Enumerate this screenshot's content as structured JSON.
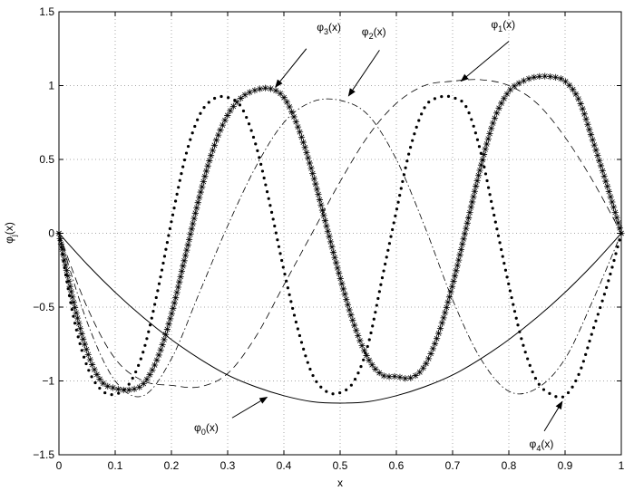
{
  "chart_data": {
    "type": "line",
    "title": "",
    "xlabel": "x",
    "ylabel": {
      "main": "φ",
      "sub": "j",
      "suffix": "(x)"
    },
    "xlim": [
      0,
      1
    ],
    "ylim": [
      -1.5,
      1.5
    ],
    "grid": true,
    "x_ticks": [
      "0",
      "0.1",
      "0.2",
      "0.3",
      "0.4",
      "0.5",
      "0.6",
      "0.7",
      "0.8",
      "0.9",
      "1"
    ],
    "y_ticks": [
      "−1.5",
      "−1",
      "−0.5",
      "0",
      "0.5",
      "1",
      "1.5"
    ],
    "x_tick_values": [
      0,
      0.1,
      0.2,
      0.3,
      0.4,
      0.5,
      0.6,
      0.7,
      0.8,
      0.9,
      1.0
    ],
    "y_tick_values": [
      -1.5,
      -1.0,
      -0.5,
      0,
      0.5,
      1.0,
      1.5
    ],
    "series": [
      {
        "id": "phi0",
        "style": "solid",
        "x": [
          0,
          0.05,
          0.1,
          0.15,
          0.2,
          0.25,
          0.3,
          0.35,
          0.4,
          0.45,
          0.5,
          0.55,
          0.6,
          0.65,
          0.7,
          0.75,
          0.8,
          0.85,
          0.9,
          0.95,
          1.0
        ],
        "y": [
          0,
          -0.21,
          -0.4,
          -0.57,
          -0.72,
          -0.85,
          -0.96,
          -1.04,
          -1.1,
          -1.14,
          -1.15,
          -1.14,
          -1.1,
          -1.04,
          -0.96,
          -0.85,
          -0.72,
          -0.57,
          -0.4,
          -0.21,
          0
        ]
      },
      {
        "id": "phi1",
        "style": "dashed",
        "x": [
          0,
          0.05,
          0.1,
          0.15,
          0.2,
          0.25,
          0.3,
          0.35,
          0.4,
          0.45,
          0.5,
          0.55,
          0.6,
          0.65,
          0.7,
          0.75,
          0.8,
          0.85,
          0.9,
          0.95,
          1.0
        ],
        "y": [
          0,
          -0.5,
          -0.85,
          -1.0,
          -1.03,
          -1.04,
          -0.95,
          -0.7,
          -0.35,
          0.0,
          0.35,
          0.66,
          0.88,
          1.0,
          1.03,
          1.04,
          1.0,
          0.88,
          0.65,
          0.35,
          0
        ]
      },
      {
        "id": "phi2",
        "style": "dashdot",
        "x": [
          0,
          0.05,
          0.1,
          0.15,
          0.2,
          0.25,
          0.3,
          0.35,
          0.4,
          0.45,
          0.5,
          0.55,
          0.6,
          0.65,
          0.7,
          0.75,
          0.8,
          0.85,
          0.9,
          0.95,
          1.0
        ],
        "y": [
          0,
          -0.6,
          -1.0,
          -1.1,
          -0.85,
          -0.4,
          0.05,
          0.45,
          0.75,
          0.89,
          0.9,
          0.8,
          0.5,
          0.05,
          -0.45,
          -0.85,
          -1.07,
          -1.05,
          -0.85,
          -0.45,
          0
        ]
      },
      {
        "id": "phi3",
        "style": "stars",
        "x": [
          0,
          0.025,
          0.05,
          0.075,
          0.1,
          0.125,
          0.15,
          0.175,
          0.2,
          0.225,
          0.25,
          0.275,
          0.3,
          0.325,
          0.35,
          0.375,
          0.4,
          0.425,
          0.45,
          0.475,
          0.5,
          0.525,
          0.55,
          0.575,
          0.6,
          0.625,
          0.65,
          0.675,
          0.7,
          0.725,
          0.75,
          0.775,
          0.8,
          0.825,
          0.85,
          0.875,
          0.9,
          0.925,
          0.95,
          0.975,
          1.0
        ],
        "y": [
          0,
          -0.45,
          -0.8,
          -1.0,
          -1.05,
          -1.06,
          -1.02,
          -0.85,
          -0.55,
          -0.15,
          0.25,
          0.58,
          0.8,
          0.92,
          0.97,
          0.98,
          0.92,
          0.72,
          0.42,
          0.06,
          -0.3,
          -0.62,
          -0.85,
          -0.96,
          -0.97,
          -0.98,
          -0.9,
          -0.68,
          -0.35,
          0.05,
          0.45,
          0.78,
          0.96,
          1.03,
          1.06,
          1.06,
          1.03,
          0.9,
          0.62,
          0.32,
          0
        ]
      },
      {
        "id": "phi4",
        "style": "dots",
        "x": [
          0,
          0.025,
          0.05,
          0.075,
          0.1,
          0.125,
          0.15,
          0.175,
          0.2,
          0.225,
          0.25,
          0.275,
          0.3,
          0.325,
          0.35,
          0.375,
          0.4,
          0.425,
          0.45,
          0.475,
          0.5,
          0.525,
          0.55,
          0.575,
          0.6,
          0.625,
          0.65,
          0.675,
          0.7,
          0.725,
          0.75,
          0.775,
          0.8,
          0.825,
          0.85,
          0.875,
          0.9,
          0.925,
          0.95,
          0.975,
          1.0
        ],
        "y": [
          0,
          -0.55,
          -0.9,
          -1.06,
          -1.09,
          -1.02,
          -0.8,
          -0.4,
          0.08,
          0.52,
          0.8,
          0.91,
          0.92,
          0.85,
          0.6,
          0.2,
          -0.25,
          -0.65,
          -0.95,
          -1.07,
          -1.08,
          -1.0,
          -0.75,
          -0.3,
          0.15,
          0.58,
          0.85,
          0.92,
          0.92,
          0.85,
          0.55,
          0.1,
          -0.35,
          -0.75,
          -1.0,
          -1.09,
          -1.1,
          -0.95,
          -0.65,
          -0.35,
          0
        ]
      }
    ],
    "annotations": [
      {
        "id": "phi0-label",
        "main": "φ",
        "sub": "0",
        "suffix": "(x)",
        "text_x": 0.262,
        "text_y": -1.34,
        "arrow_from": [
          0.308,
          -1.25
        ],
        "arrow_to": [
          0.37,
          -1.11
        ]
      },
      {
        "id": "phi1-label",
        "main": "φ",
        "sub": "1",
        "suffix": "(x)",
        "text_x": 0.79,
        "text_y": 1.39,
        "arrow_from": [
          0.8,
          1.3
        ],
        "arrow_to": [
          0.715,
          1.03
        ]
      },
      {
        "id": "phi2-label",
        "main": "φ",
        "sub": "2",
        "suffix": "(x)",
        "text_x": 0.56,
        "text_y": 1.34,
        "arrow_from": [
          0.57,
          1.24
        ],
        "arrow_to": [
          0.515,
          0.93
        ]
      },
      {
        "id": "phi3-label",
        "main": "φ",
        "sub": "3",
        "suffix": "(x)",
        "text_x": 0.48,
        "text_y": 1.37,
        "arrow_from": [
          0.44,
          1.25
        ],
        "arrow_to": [
          0.385,
          0.99
        ]
      },
      {
        "id": "phi4-label",
        "main": "φ",
        "sub": "4",
        "suffix": "(x)",
        "text_x": 0.858,
        "text_y": -1.45,
        "arrow_from": [
          0.863,
          -1.34
        ],
        "arrow_to": [
          0.895,
          -1.14
        ]
      }
    ]
  }
}
